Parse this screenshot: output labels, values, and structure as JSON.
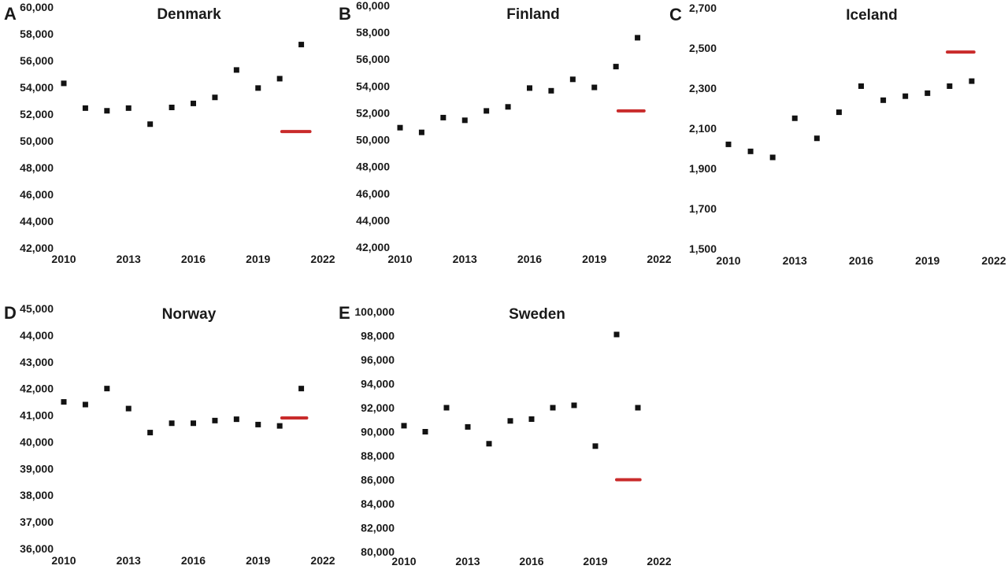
{
  "figure": {
    "description_labels": [],
    "background_color": "#ffffff",
    "text_color": "#1a1a1a",
    "marker_color": "#121212",
    "reference_line_color": "#c92b2b"
  },
  "chart_data": [
    {
      "panel_label": "A",
      "title": "Denmark",
      "type": "scatter",
      "marker": "square",
      "x": [
        2010,
        2011,
        2012,
        2013,
        2014,
        2015,
        2016,
        2017,
        2018,
        2019,
        2020,
        2021
      ],
      "values": [
        54300,
        52450,
        52250,
        52450,
        51250,
        52500,
        52800,
        53250,
        55300,
        53950,
        54650,
        57200
      ],
      "reference_line": {
        "value": 50700,
        "x_start": 2020.1,
        "x_end": 2021.4
      },
      "ylim": [
        42000,
        60000
      ],
      "ytick_values": [
        60000,
        58000,
        56000,
        54000,
        52000,
        50000,
        48000,
        46000,
        44000,
        42000
      ],
      "ytick_labels": [
        "60,000",
        "58,000",
        "56,000",
        "54,000",
        "52,000",
        "50,000",
        "48,000",
        "46,000",
        "44,000",
        "42,000"
      ],
      "xtick_values": [
        2010,
        2013,
        2016,
        2019,
        2022
      ],
      "xtick_labels": [
        "2010",
        "2013",
        "2016",
        "2019",
        "2022"
      ],
      "xlabel": "",
      "ylabel": "",
      "grid": false,
      "legend": "none"
    },
    {
      "panel_label": "B",
      "title": "Finland",
      "type": "scatter",
      "marker": "square",
      "x": [
        2010,
        2011,
        2012,
        2013,
        2014,
        2015,
        2016,
        2017,
        2018,
        2019,
        2020,
        2021
      ],
      "values": [
        50900,
        50550,
        51650,
        51450,
        52150,
        52450,
        53850,
        53650,
        54500,
        53900,
        55450,
        57600
      ],
      "reference_line": {
        "value": 52150,
        "x_start": 2020.1,
        "x_end": 2021.3
      },
      "ylim": [
        42000,
        60000
      ],
      "ytick_values": [
        60000,
        58000,
        56000,
        54000,
        52000,
        50000,
        48000,
        46000,
        44000,
        42000
      ],
      "ytick_labels": [
        "60,000",
        "58,000",
        "56,000",
        "54,000",
        "52,000",
        "50,000",
        "48,000",
        "46,000",
        "44,000",
        "42,000"
      ],
      "xtick_values": [
        2010,
        2013,
        2016,
        2019,
        2022
      ],
      "xtick_labels": [
        "2010",
        "2013",
        "2016",
        "2019",
        "2022"
      ],
      "xlabel": "",
      "ylabel": "",
      "grid": false,
      "legend": "none"
    },
    {
      "panel_label": "C",
      "title": "Iceland",
      "type": "scatter",
      "marker": "square",
      "x": [
        2010,
        2011,
        2012,
        2013,
        2014,
        2015,
        2016,
        2017,
        2018,
        2019,
        2020,
        2021
      ],
      "values": [
        2020,
        1985,
        1955,
        2150,
        2050,
        2180,
        2310,
        2240,
        2260,
        2275,
        2310,
        2335
      ],
      "reference_line": {
        "value": 2480,
        "x_start": 2019.9,
        "x_end": 2021.1
      },
      "ylim": [
        1500,
        2700
      ],
      "ytick_values": [
        2700,
        2500,
        2300,
        2100,
        1900,
        1700,
        1500
      ],
      "ytick_labels": [
        "2,700",
        "2,500",
        "2,300",
        "2,100",
        "1,900",
        "1,700",
        "1,500"
      ],
      "xtick_values": [
        2010,
        2013,
        2016,
        2019,
        2022
      ],
      "xtick_labels": [
        "2010",
        "2013",
        "2016",
        "2019",
        "2022"
      ],
      "xlabel": "",
      "ylabel": "",
      "grid": false,
      "legend": "none"
    },
    {
      "panel_label": "D",
      "title": "Norway",
      "type": "scatter",
      "marker": "square",
      "x": [
        2010,
        2011,
        2012,
        2013,
        2014,
        2015,
        2016,
        2017,
        2018,
        2019,
        2020,
        2021
      ],
      "values": [
        41500,
        41400,
        42000,
        41250,
        40350,
        40700,
        40700,
        40800,
        40850,
        40650,
        40600,
        42000
      ],
      "reference_line": {
        "value": 40900,
        "x_start": 2020.1,
        "x_end": 2021.25
      },
      "ylim": [
        36000,
        45000
      ],
      "ytick_values": [
        45000,
        44000,
        43000,
        42000,
        41000,
        40000,
        39000,
        38000,
        37000,
        36000
      ],
      "ytick_labels": [
        "45,000",
        "44,000",
        "43,000",
        "42,000",
        "41,000",
        "40,000",
        "39,000",
        "38,000",
        "37,000",
        "36,000"
      ],
      "xtick_values": [
        2010,
        2013,
        2016,
        2019,
        2022
      ],
      "xtick_labels": [
        "2010",
        "2013",
        "2016",
        "2019",
        "2022"
      ],
      "xlabel": "",
      "ylabel": "",
      "grid": false,
      "legend": "none"
    },
    {
      "panel_label": "E",
      "title": "Sweden",
      "type": "scatter",
      "marker": "square",
      "x": [
        2010,
        2011,
        2012,
        2013,
        2014,
        2015,
        2016,
        2017,
        2018,
        2019,
        2020,
        2021
      ],
      "values": [
        90500,
        90000,
        92000,
        90400,
        89000,
        90900,
        91050,
        92000,
        92200,
        88800,
        98100,
        92000
      ],
      "reference_line": {
        "value": 86000,
        "x_start": 2020.0,
        "x_end": 2021.1
      },
      "ylim": [
        80000,
        100000
      ],
      "ytick_values": [
        100000,
        98000,
        96000,
        94000,
        92000,
        90000,
        88000,
        86000,
        84000,
        82000,
        80000
      ],
      "ytick_labels": [
        "100,000",
        "98,000",
        "96,000",
        "94,000",
        "92,000",
        "90,000",
        "88,000",
        "86,000",
        "84,000",
        "82,000",
        "80,000"
      ],
      "xtick_values": [
        2010,
        2013,
        2016,
        2019,
        2022
      ],
      "xtick_labels": [
        "2010",
        "2013",
        "2016",
        "2019",
        "2022"
      ],
      "xlabel": "",
      "ylabel": "",
      "grid": false,
      "legend": "none"
    }
  ]
}
